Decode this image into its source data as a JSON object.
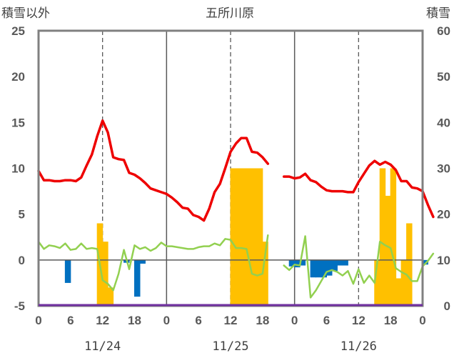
{
  "chart_data": {
    "type": "bar+line",
    "title": "五所川原",
    "ylabel_left": "積雪以外",
    "ylabel_right": "積雪",
    "yleft": {
      "lim": [
        -5,
        25
      ],
      "ticks": [
        -5,
        0,
        5,
        10,
        15,
        20,
        25
      ]
    },
    "yright": {
      "lim": [
        0,
        60
      ],
      "ticks": [
        0,
        10,
        20,
        30,
        40,
        50,
        60
      ]
    },
    "x_ticks": [
      "0",
      "6",
      "12",
      "18",
      "0",
      "6",
      "12",
      "18",
      "0",
      "6",
      "12",
      "18",
      "0"
    ],
    "dates": [
      "11/24",
      "11/25",
      "11/26"
    ],
    "grid": "dashed verticals at 12h, solid at day boundaries",
    "colors": {
      "temperature": "#ee0000",
      "green_line": "#92d050",
      "yellow_bars": "#ffc000",
      "blue_bars": "#0070c0",
      "axis_line": "#7030a0",
      "frame": "#808080"
    },
    "series": [
      {
        "kind": "line",
        "axis": "left",
        "color_key": "temperature",
        "segments": [
          {
            "start": 0,
            "values": [
              9.7,
              8.7,
              8.7,
              8.6,
              8.6,
              8.7,
              8.7,
              8.6,
              9.0,
              10.3,
              11.5,
              13.5,
              15.2,
              13.9,
              11.2,
              11.0,
              10.9,
              9.5,
              9.3,
              8.9,
              8.4,
              7.8,
              7.6,
              7.4,
              7.2,
              6.8,
              6.3,
              5.7,
              5.6,
              4.9,
              4.7,
              4.3,
              5.6,
              7.4,
              8.3,
              10.0,
              11.8,
              12.7,
              13.3,
              13.3,
              11.8,
              11.7,
              11.2,
              10.5
            ]
          },
          {
            "start": 46,
            "values": [
              9.1,
              9.1,
              8.9,
              9.0,
              9.4,
              8.7,
              8.5,
              8.0,
              7.6,
              7.5,
              7.5,
              7.5,
              7.4,
              7.4,
              8.5,
              9.4,
              10.3,
              10.8,
              10.4,
              10.7,
              10.4,
              9.8,
              8.6,
              8.6,
              7.9,
              7.8,
              7.5,
              6.0,
              4.7
            ]
          }
        ]
      },
      {
        "kind": "line",
        "axis": "left",
        "color_key": "green_line",
        "segments": [
          {
            "start": 0,
            "values": [
              2.0,
              1.2,
              1.6,
              1.5,
              1.3,
              1.8,
              1.1,
              1.2,
              1.8,
              1.2,
              1.3,
              1.2,
              -2.2,
              -2.6,
              -3.3,
              -1.5,
              1.1,
              -1.0,
              1.6,
              1.2,
              1.4,
              1.0,
              1.3,
              1.9,
              1.5,
              1.5,
              1.4,
              1.3,
              1.2,
              1.2,
              1.4,
              1.5,
              1.5,
              1.8,
              1.6,
              2.3,
              2.2,
              1.3,
              1.3,
              1.2,
              -1.5,
              -1.7,
              -1.5,
              2.7
            ]
          },
          {
            "start": 46,
            "values": [
              -0.6,
              -1.1,
              -0.5,
              -0.6,
              2.6,
              -4.1,
              -3.3,
              -2.3,
              -1.3,
              -1.1,
              -1.3,
              -1.7,
              -1.2,
              -2.6,
              -1.0,
              -2.5,
              -1.7,
              -2.5,
              2.0,
              1.6,
              1.3,
              -0.9,
              -1.3,
              -1.6,
              -2.3,
              -2.3,
              -0.7,
              -0.1,
              0.7
            ]
          }
        ]
      },
      {
        "kind": "bar",
        "axis": "right",
        "color_key": "yellow_bars",
        "x": [
          11,
          12,
          13,
          36,
          37,
          38,
          39,
          40,
          41,
          42,
          63,
          64,
          65,
          66,
          67,
          68,
          69
        ],
        "values": [
          18,
          14,
          4,
          30,
          30,
          30,
          30,
          30,
          30,
          14,
          10,
          30,
          24,
          30,
          6,
          10,
          18
        ]
      },
      {
        "kind": "bar",
        "axis": "left",
        "color_key": "blue_bars",
        "x": [
          5,
          16,
          18,
          19,
          47,
          48,
          49,
          51,
          52,
          53,
          54,
          55,
          56,
          57,
          72
        ],
        "values": [
          -2.5,
          -0.3,
          -4.0,
          -0.4,
          -0.7,
          -0.8,
          -0.6,
          -1.9,
          -1.9,
          -1.9,
          -1.7,
          -1.2,
          -0.6,
          -0.6,
          -0.5
        ]
      }
    ]
  }
}
